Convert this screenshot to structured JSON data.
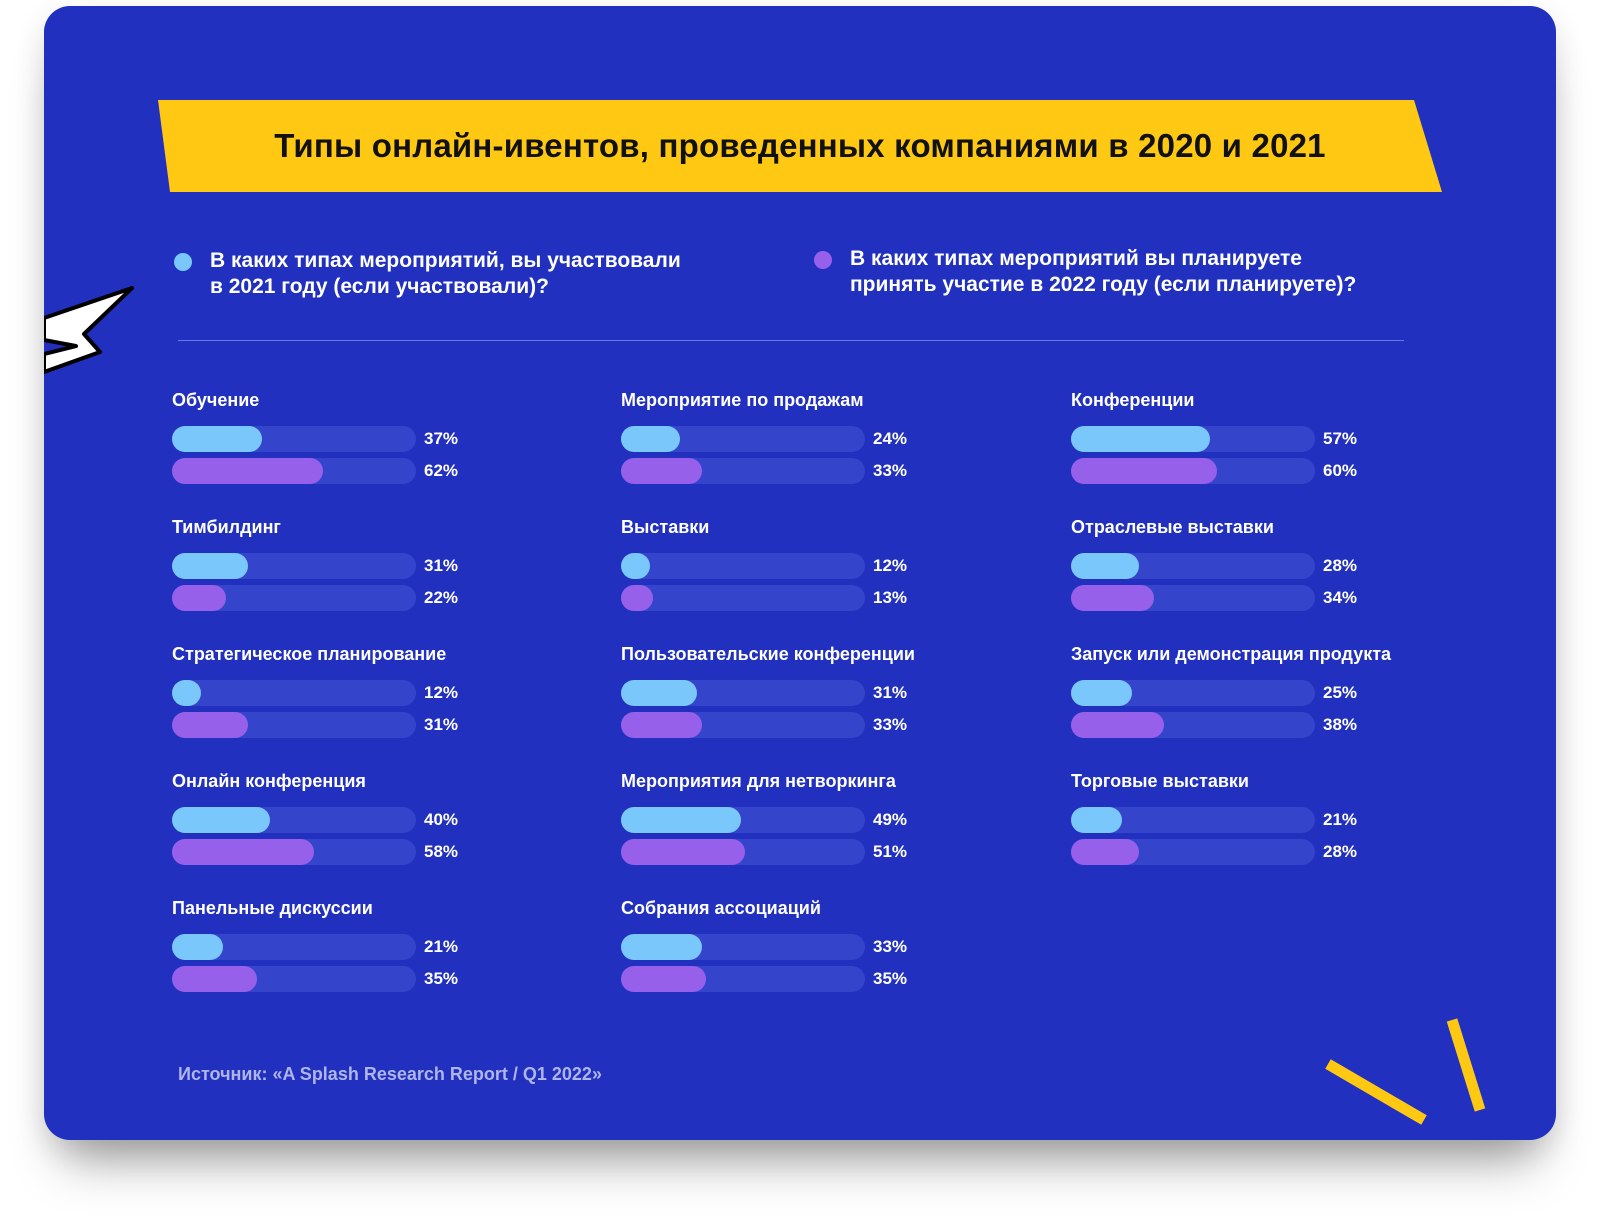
{
  "title": "Типы онлайн-ивентов, проведенных компаниями в 2020 и 2021",
  "legend": [
    {
      "text": "В каких типах мероприятий, вы участвовали\nв 2021 году (если участвовали)?",
      "color": "#79C7FB"
    },
    {
      "text": "В каких типах мероприятий вы планируете\nпринять участие в 2022 году (если планируете)?",
      "color": "#9660EB"
    }
  ],
  "source": "Источник: «A Splash Research Report / Q1 2022»",
  "colors": {
    "background": "#2130BE",
    "banner": "#FFC812",
    "track": "#3444CB",
    "series2021": "#79C7FB",
    "series2022": "#9660EB"
  },
  "chart_data": {
    "type": "bar",
    "orientation": "horizontal",
    "title": "Типы онлайн-ивентов, проведенных компаниями в 2020 и 2021",
    "unit": "%",
    "xlim": [
      0,
      100
    ],
    "series": [
      {
        "name": "В каких типах мероприятий, вы участвовали в 2021 году (если участвовали)?",
        "key": "y2021"
      },
      {
        "name": "В каких типах мероприятий вы планируете принять участие в 2022 году (если планируете)?",
        "key": "y2022"
      }
    ],
    "categories": [
      {
        "label": "Обучение",
        "y2021": 37,
        "y2022": 62
      },
      {
        "label": "Тимбилдинг",
        "y2021": 31,
        "y2022": 22
      },
      {
        "label": "Стратегическое планирование",
        "y2021": 12,
        "y2022": 31
      },
      {
        "label": "Онлайн конференция",
        "y2021": 40,
        "y2022": 58
      },
      {
        "label": "Панельные дискуссии",
        "y2021": 21,
        "y2022": 35
      },
      {
        "label": "Мероприятие по продажам",
        "y2021": 24,
        "y2022": 33
      },
      {
        "label": "Выставки",
        "y2021": 12,
        "y2022": 13
      },
      {
        "label": "Пользовательские конференции",
        "y2021": 31,
        "y2022": 33
      },
      {
        "label": "Мероприятия для нетворкинга",
        "y2021": 49,
        "y2022": 51
      },
      {
        "label": "Собрания ассоциаций",
        "y2021": 33,
        "y2022": 35
      },
      {
        "label": "Конференции",
        "y2021": 57,
        "y2022": 60
      },
      {
        "label": "Отраслевые выставки",
        "y2021": 28,
        "y2022": 34
      },
      {
        "label": "Запуск или демонстрация продукта",
        "y2021": 25,
        "y2022": 38
      },
      {
        "label": "Торговые выставки",
        "y2021": 21,
        "y2022": 28
      }
    ]
  }
}
